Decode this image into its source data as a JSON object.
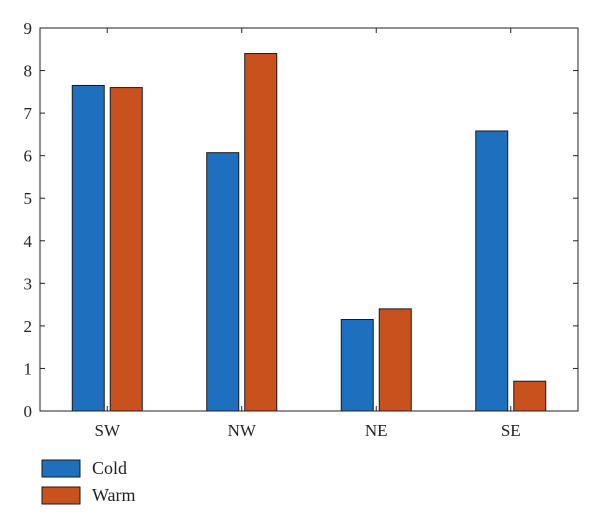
{
  "chart_data": {
    "type": "bar",
    "title": "",
    "xlabel": "",
    "ylabel": "",
    "categories": [
      "SW",
      "NW",
      "NE",
      "SE"
    ],
    "series": [
      {
        "name": "Cold",
        "color": "#1f6fbf",
        "values": [
          7.65,
          6.07,
          2.15,
          6.58
        ]
      },
      {
        "name": "Warm",
        "color": "#c9511e",
        "values": [
          7.6,
          8.4,
          2.4,
          0.7
        ]
      }
    ],
    "ylim": [
      0,
      9
    ],
    "yticks": [
      0,
      1,
      2,
      3,
      4,
      5,
      6,
      7,
      8,
      9
    ],
    "grid": false,
    "legend_position": "bottom-left"
  }
}
